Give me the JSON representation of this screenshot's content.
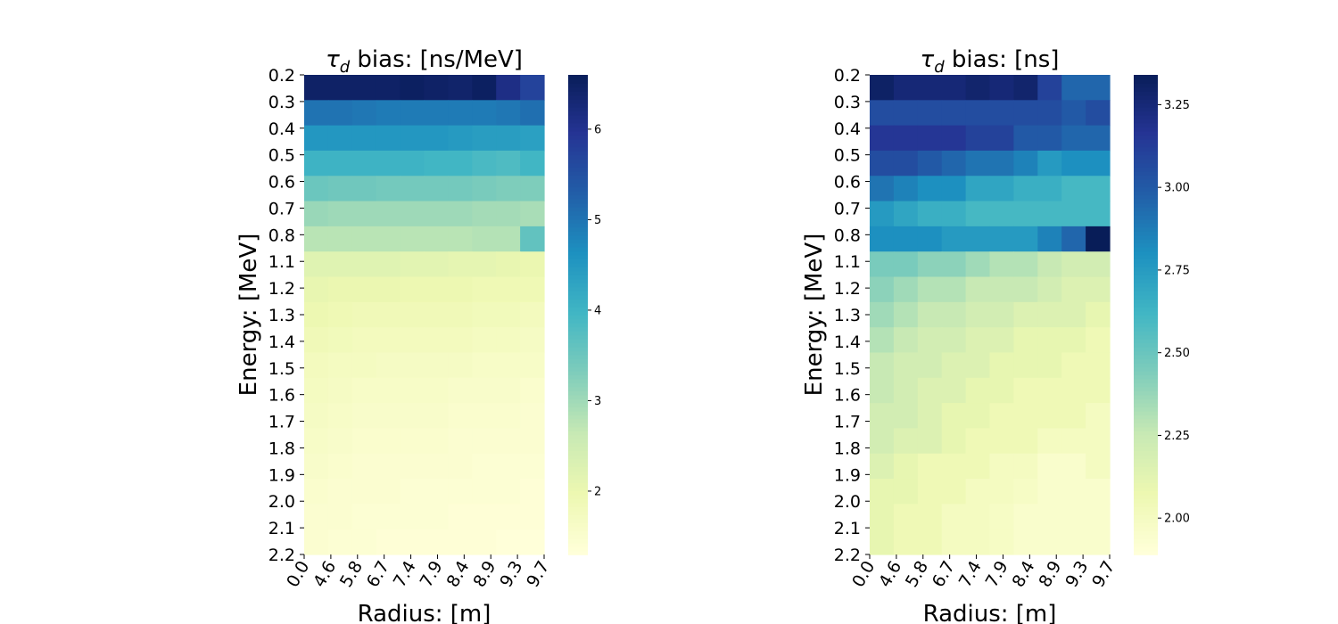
{
  "chart_data": [
    {
      "type": "heatmap",
      "title_prefix": "τ",
      "title_sub": "d",
      "title_text": " bias: [ns/MeV]",
      "xlabel": "Radius: [m]",
      "ylabel": "Energy: [MeV]",
      "x_ticks": [
        "0.0",
        "4.6",
        "5.8",
        "6.7",
        "7.4",
        "7.9",
        "8.4",
        "8.9",
        "9.3",
        "9.7"
      ],
      "y_ticks": [
        "0.2",
        "0.3",
        "0.4",
        "0.5",
        "0.6",
        "0.7",
        "0.8",
        "1.1",
        "1.2",
        "1.3",
        "1.4",
        "1.5",
        "1.6",
        "1.7",
        "1.8",
        "1.9",
        "2.0",
        "2.1",
        "2.2"
      ],
      "colorbar": {
        "min": 1.3,
        "max": 6.6,
        "ticks": [
          "2",
          "3",
          "4",
          "5",
          "6"
        ],
        "tick_values": [
          2,
          3,
          4,
          5,
          6
        ]
      },
      "colormap": "YlGnBu",
      "values": [
        [
          6.45,
          6.45,
          6.45,
          6.45,
          6.5,
          6.45,
          6.4,
          6.5,
          6.1,
          5.7
        ],
        [
          5.0,
          5.0,
          4.95,
          4.9,
          4.9,
          4.9,
          4.9,
          4.9,
          4.95,
          5.05
        ],
        [
          4.5,
          4.5,
          4.5,
          4.5,
          4.5,
          4.5,
          4.45,
          4.4,
          4.4,
          4.35
        ],
        [
          4.0,
          4.0,
          4.0,
          4.0,
          4.0,
          3.95,
          3.95,
          3.85,
          3.8,
          3.95
        ],
        [
          3.5,
          3.45,
          3.45,
          3.4,
          3.4,
          3.4,
          3.4,
          3.35,
          3.3,
          3.3
        ],
        [
          3.05,
          3.0,
          3.0,
          3.0,
          3.0,
          3.0,
          3.0,
          2.95,
          2.95,
          2.9
        ],
        [
          2.75,
          2.75,
          2.75,
          2.75,
          2.75,
          2.75,
          2.75,
          2.8,
          2.8,
          3.6
        ],
        [
          2.2,
          2.2,
          2.2,
          2.2,
          2.15,
          2.15,
          2.1,
          2.1,
          2.05,
          2.0
        ],
        [
          2.05,
          2.0,
          2.0,
          2.0,
          1.95,
          1.95,
          1.95,
          1.9,
          1.9,
          1.9
        ],
        [
          1.95,
          1.9,
          1.85,
          1.85,
          1.85,
          1.85,
          1.85,
          1.8,
          1.8,
          1.75
        ],
        [
          1.85,
          1.8,
          1.75,
          1.75,
          1.75,
          1.75,
          1.75,
          1.7,
          1.7,
          1.65
        ],
        [
          1.75,
          1.7,
          1.7,
          1.65,
          1.65,
          1.65,
          1.65,
          1.6,
          1.6,
          1.6
        ],
        [
          1.7,
          1.65,
          1.6,
          1.6,
          1.6,
          1.6,
          1.55,
          1.55,
          1.55,
          1.5
        ],
        [
          1.65,
          1.6,
          1.55,
          1.55,
          1.55,
          1.55,
          1.5,
          1.5,
          1.5,
          1.45
        ],
        [
          1.6,
          1.55,
          1.5,
          1.5,
          1.5,
          1.5,
          1.45,
          1.45,
          1.45,
          1.45
        ],
        [
          1.55,
          1.5,
          1.45,
          1.45,
          1.45,
          1.45,
          1.45,
          1.4,
          1.4,
          1.4
        ],
        [
          1.5,
          1.45,
          1.45,
          1.45,
          1.4,
          1.4,
          1.4,
          1.4,
          1.4,
          1.35
        ],
        [
          1.45,
          1.45,
          1.4,
          1.4,
          1.4,
          1.4,
          1.35,
          1.35,
          1.35,
          1.35
        ],
        [
          1.45,
          1.4,
          1.4,
          1.35,
          1.35,
          1.35,
          1.35,
          1.35,
          1.3,
          1.3
        ]
      ]
    },
    {
      "type": "heatmap",
      "title_prefix": "τ",
      "title_sub": "d",
      "title_text": " bias: [ns]",
      "xlabel": "Radius: [m]",
      "ylabel": "Energy: [MeV]",
      "x_ticks": [
        "0.0",
        "4.6",
        "5.8",
        "6.7",
        "7.4",
        "7.9",
        "8.4",
        "8.9",
        "9.3",
        "9.7"
      ],
      "y_ticks": [
        "0.2",
        "0.3",
        "0.4",
        "0.5",
        "0.6",
        "0.7",
        "0.8",
        "1.1",
        "1.2",
        "1.3",
        "1.4",
        "1.5",
        "1.6",
        "1.7",
        "1.8",
        "1.9",
        "2.0",
        "2.1",
        "2.2"
      ],
      "colorbar": {
        "min": 1.89,
        "max": 3.34,
        "ticks": [
          "2.00",
          "2.25",
          "2.50",
          "2.75",
          "3.00",
          "3.25"
        ],
        "tick_values": [
          2.0,
          2.25,
          2.5,
          2.75,
          3.0,
          3.25
        ]
      },
      "colormap": "YlGnBu",
      "values": [
        [
          3.3,
          3.25,
          3.25,
          3.25,
          3.28,
          3.25,
          3.28,
          3.1,
          2.95,
          2.95
        ],
        [
          3.05,
          3.05,
          3.05,
          3.05,
          3.05,
          3.05,
          3.05,
          3.05,
          3.0,
          3.05
        ],
        [
          3.15,
          3.15,
          3.15,
          3.15,
          3.1,
          3.1,
          3.0,
          3.0,
          2.95,
          2.95
        ],
        [
          3.05,
          3.05,
          3.0,
          2.95,
          2.9,
          2.9,
          2.85,
          2.75,
          2.8,
          2.8
        ],
        [
          2.9,
          2.85,
          2.8,
          2.8,
          2.7,
          2.7,
          2.65,
          2.65,
          2.6,
          2.6
        ],
        [
          2.75,
          2.7,
          2.65,
          2.65,
          2.6,
          2.6,
          2.6,
          2.6,
          2.6,
          2.6
        ],
        [
          2.8,
          2.8,
          2.8,
          2.75,
          2.75,
          2.75,
          2.75,
          2.85,
          2.95,
          3.35
        ],
        [
          2.45,
          2.45,
          2.4,
          2.4,
          2.35,
          2.3,
          2.3,
          2.25,
          2.2,
          2.2
        ],
        [
          2.4,
          2.35,
          2.3,
          2.3,
          2.25,
          2.25,
          2.25,
          2.2,
          2.15,
          2.15
        ],
        [
          2.35,
          2.3,
          2.25,
          2.25,
          2.2,
          2.2,
          2.15,
          2.15,
          2.15,
          2.1
        ],
        [
          2.3,
          2.25,
          2.2,
          2.2,
          2.15,
          2.15,
          2.1,
          2.1,
          2.1,
          2.05
        ],
        [
          2.25,
          2.2,
          2.2,
          2.15,
          2.15,
          2.1,
          2.1,
          2.1,
          2.05,
          2.05
        ],
        [
          2.25,
          2.2,
          2.15,
          2.15,
          2.1,
          2.1,
          2.05,
          2.05,
          2.05,
          2.05
        ],
        [
          2.2,
          2.2,
          2.15,
          2.1,
          2.1,
          2.05,
          2.05,
          2.05,
          2.05,
          2.0
        ],
        [
          2.2,
          2.15,
          2.15,
          2.1,
          2.05,
          2.05,
          2.05,
          2.0,
          2.0,
          2.0
        ],
        [
          2.15,
          2.1,
          2.05,
          2.05,
          2.05,
          2.0,
          2.0,
          1.95,
          1.95,
          2.0
        ],
        [
          2.1,
          2.1,
          2.05,
          2.05,
          2.0,
          2.0,
          1.98,
          1.95,
          1.95,
          1.95
        ],
        [
          2.1,
          2.05,
          2.05,
          2.0,
          2.0,
          1.98,
          1.95,
          1.95,
          1.95,
          1.95
        ],
        [
          2.1,
          2.05,
          2.05,
          2.0,
          2.0,
          1.98,
          1.95,
          1.95,
          1.95,
          1.95
        ]
      ]
    }
  ]
}
